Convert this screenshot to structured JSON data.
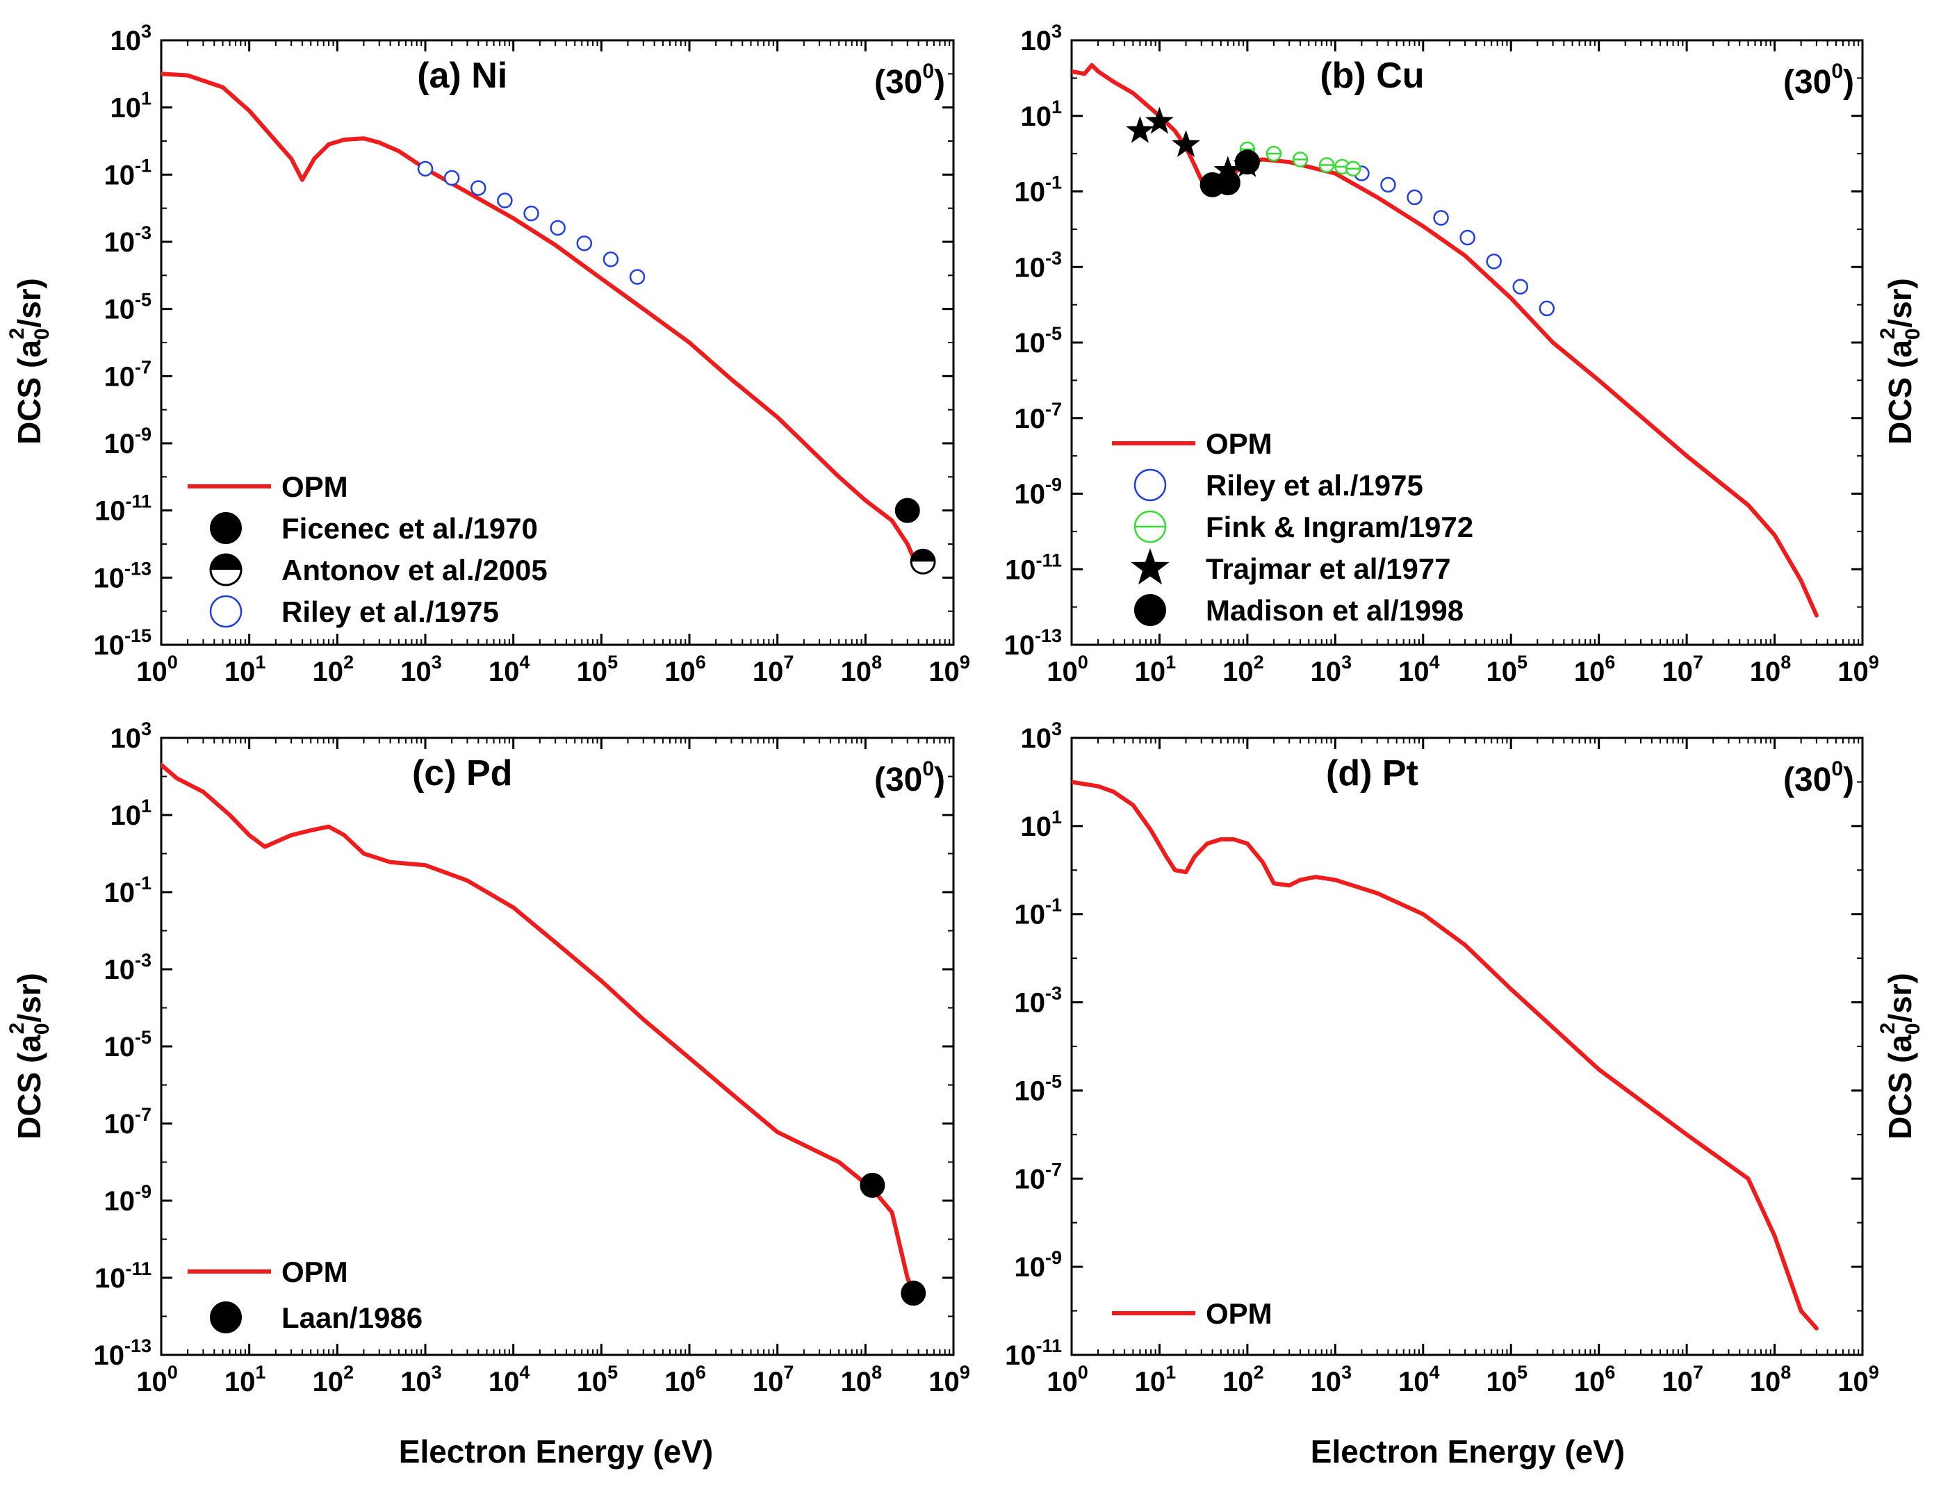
{
  "figure": {
    "xlabel": "Electron Energy (eV)",
    "ylabel_main": "DCS (a",
    "ylabel_sub": "0",
    "ylabel_sup": "2",
    "ylabel_tail": "/sr)"
  },
  "colors": {
    "opm": "#ee1c1c",
    "riley": "#1f3fe0",
    "fink": "#33dd33",
    "black": "#000000"
  },
  "chart_data": [
    {
      "type": "line",
      "panel": "a",
      "title": "(a) Ni",
      "angle": "(30",
      "angle_sup": "0",
      "angle_tail": ")",
      "xscale": "log",
      "yscale": "log",
      "xlim": [
        1,
        1000000000.0
      ],
      "ylim": [
        1e-15,
        1000.0
      ],
      "x_ticks": [
        "10^0",
        "10^1",
        "10^2",
        "10^3",
        "10^4",
        "10^5",
        "10^6",
        "10^7",
        "10^8",
        "10^9"
      ],
      "y_ticks": [
        "10^-15",
        "10^-13",
        "10^-11",
        "10^-9",
        "10^-7",
        "10^-5",
        "10^-3",
        "10^-1",
        "10^1",
        "10^3"
      ],
      "legend_position": "bottom-left",
      "series": [
        {
          "name": "OPM",
          "kind": "line",
          "color": "#ee1c1c",
          "x": [
            1,
            2,
            5,
            10,
            20,
            30,
            40,
            55,
            80,
            120,
            200,
            300,
            500,
            1000,
            3000,
            10000.0,
            30000.0,
            100000.0,
            300000.0,
            1000000.0,
            3000000.0,
            10000000.0,
            50000000.0,
            100000000.0,
            200000000.0,
            300000000.0,
            350000000.0,
            400000000.0,
            500000000.0
          ],
          "y": [
            100,
            90,
            40,
            8,
            1,
            0.3,
            0.07,
            0.3,
            0.8,
            1.1,
            1.2,
            0.9,
            0.5,
            0.15,
            0.03,
            0.005,
            0.0008,
            8e-05,
            1e-05,
            1e-06,
            8e-08,
            6e-09,
            1e-10,
            2e-11,
            5e-12,
            1e-12,
            4e-13,
            3e-13,
            2e-13
          ]
        },
        {
          "name": "Ficenec et al./1970",
          "kind": "filled-circle",
          "color": "#000000",
          "x": [
            300000000.0
          ],
          "y": [
            1e-11
          ]
        },
        {
          "name": "Antonov et al./2005",
          "kind": "half-circle",
          "color": "#000000",
          "x": [
            450000000.0
          ],
          "y": [
            3e-13
          ]
        },
        {
          "name": "Riley et al./1975",
          "kind": "open-circle",
          "color": "#1f3fe0",
          "x": [
            1000,
            2000,
            4000,
            8000,
            16000,
            32000,
            64000,
            128000,
            256000
          ],
          "y": [
            0.15,
            0.08,
            0.04,
            0.017,
            0.007,
            0.0026,
            0.0009,
            0.0003,
            9e-05
          ]
        }
      ]
    },
    {
      "type": "line",
      "panel": "b",
      "title": "(b) Cu",
      "angle": "(30",
      "angle_sup": "0",
      "angle_tail": ")",
      "xscale": "log",
      "yscale": "log",
      "xlim": [
        1,
        1000000000.0
      ],
      "ylim": [
        1e-13,
        1000.0
      ],
      "x_ticks": [
        "10^0",
        "10^1",
        "10^2",
        "10^3",
        "10^4",
        "10^5",
        "10^6",
        "10^7",
        "10^8",
        "10^9"
      ],
      "y_ticks": [
        "10^-13",
        "10^-11",
        "10^-9",
        "10^-7",
        "10^-5",
        "10^-3",
        "10^-1",
        "10^1",
        "10^3"
      ],
      "legend_position": "bottom-left",
      "series": [
        {
          "name": "OPM",
          "kind": "line",
          "color": "#ee1c1c",
          "x": [
            1,
            1.4,
            1.7,
            2,
            3,
            5,
            10,
            15,
            20,
            25,
            30,
            40,
            50,
            70,
            100,
            150,
            300,
            1000,
            3000,
            10000.0,
            30000.0,
            100000.0,
            300000.0,
            1000000.0,
            10000000.0,
            50000000.0,
            100000000.0,
            200000000.0,
            300000000.0
          ],
          "y": [
            150,
            130,
            220,
            150,
            80,
            40,
            10,
            4,
            1.5,
            0.5,
            0.2,
            0.12,
            0.14,
            0.3,
            0.6,
            0.7,
            0.6,
            0.3,
            0.07,
            0.012,
            0.002,
            0.00015,
            1e-05,
            1e-06,
            1e-08,
            5e-10,
            8e-11,
            5e-12,
            6e-13
          ]
        },
        {
          "name": "Riley et al./1975",
          "kind": "open-circle",
          "color": "#1f3fe0",
          "x": [
            2000,
            4000,
            8000,
            16000,
            32000,
            64000,
            128000,
            256000
          ],
          "y": [
            0.3,
            0.15,
            0.07,
            0.02,
            0.006,
            0.0014,
            0.0003,
            8e-05
          ]
        },
        {
          "name": "Fink & Ingram/1972",
          "kind": "theta-circle",
          "color": "#33dd33",
          "x": [
            100,
            200,
            400,
            800,
            1200,
            1600
          ],
          "y": [
            1.3,
            1.0,
            0.7,
            0.5,
            0.45,
            0.4
          ]
        },
        {
          "name": "Trajmar et al/1977",
          "kind": "star",
          "color": "#000000",
          "x": [
            6,
            10,
            20,
            60,
            100
          ],
          "y": [
            4,
            7,
            1.7,
            0.35,
            0.5
          ]
        },
        {
          "name": "Madison et al/1998",
          "kind": "filled-circle",
          "color": "#000000",
          "x": [
            40,
            60,
            100
          ],
          "y": [
            0.15,
            0.17,
            0.6
          ]
        }
      ]
    },
    {
      "type": "line",
      "panel": "c",
      "title": "(c) Pd",
      "angle": "(30",
      "angle_sup": "0",
      "angle_tail": ")",
      "xscale": "log",
      "yscale": "log",
      "xlim": [
        1,
        1000000000.0
      ],
      "ylim": [
        1e-13,
        1000.0
      ],
      "x_ticks": [
        "10^0",
        "10^1",
        "10^2",
        "10^3",
        "10^4",
        "10^5",
        "10^6",
        "10^7",
        "10^8",
        "10^9"
      ],
      "y_ticks": [
        "10^-13",
        "10^-11",
        "10^-9",
        "10^-7",
        "10^-5",
        "10^-3",
        "10^-1",
        "10^1",
        "10^3"
      ],
      "legend_position": "bottom-left",
      "series": [
        {
          "name": "OPM",
          "kind": "line",
          "color": "#ee1c1c",
          "x": [
            1,
            1.5,
            3,
            6,
            10,
            15,
            20,
            30,
            50,
            80,
            120,
            200,
            400,
            1000,
            3000,
            10000.0,
            30000.0,
            100000.0,
            300000.0,
            1000000.0,
            3000000.0,
            10000000.0,
            50000000.0,
            120000000.0,
            200000000.0,
            300000000.0,
            350000000.0
          ],
          "y": [
            200,
            90,
            40,
            10,
            3,
            1.5,
            2,
            3,
            4,
            5,
            3,
            1,
            0.6,
            0.5,
            0.2,
            0.04,
            0.005,
            0.0005,
            5e-05,
            5e-06,
            6e-07,
            6e-08,
            1e-08,
            2e-09,
            5e-10,
            1e-11,
            4e-12
          ]
        },
        {
          "name": "Laan/1986",
          "kind": "filled-circle",
          "color": "#000000",
          "x": [
            120000000.0,
            350000000.0
          ],
          "y": [
            2.5e-09,
            4e-12
          ]
        }
      ]
    },
    {
      "type": "line",
      "panel": "d",
      "title": "(d) Pt",
      "angle": "(30",
      "angle_sup": "0",
      "angle_tail": ")",
      "xscale": "log",
      "yscale": "log",
      "xlim": [
        1,
        1000000000.0
      ],
      "ylim": [
        1e-11,
        1000.0
      ],
      "x_ticks": [
        "10^0",
        "10^1",
        "10^2",
        "10^3",
        "10^4",
        "10^5",
        "10^6",
        "10^7",
        "10^8",
        "10^9"
      ],
      "y_ticks": [
        "10^-11",
        "10^-9",
        "10^-7",
        "10^-5",
        "10^-3",
        "10^-1",
        "10^1",
        "10^3"
      ],
      "legend_position": "bottom-left",
      "series": [
        {
          "name": "OPM",
          "kind": "line",
          "color": "#ee1c1c",
          "x": [
            1,
            2,
            3,
            5,
            8,
            12,
            15,
            20,
            25,
            35,
            50,
            70,
            100,
            150,
            200,
            300,
            400,
            600,
            1000,
            3000,
            10000.0,
            30000.0,
            100000.0,
            1000000.0,
            10000000.0,
            50000000.0,
            100000000.0,
            200000000.0,
            300000000.0
          ],
          "y": [
            100,
            80,
            60,
            30,
            8,
            2,
            1,
            0.9,
            2,
            4,
            5,
            5,
            4,
            1.5,
            0.5,
            0.45,
            0.6,
            0.7,
            0.6,
            0.3,
            0.1,
            0.02,
            0.002,
            3e-05,
            1e-06,
            1e-07,
            5e-09,
            1e-10,
            4e-11
          ]
        }
      ]
    }
  ]
}
